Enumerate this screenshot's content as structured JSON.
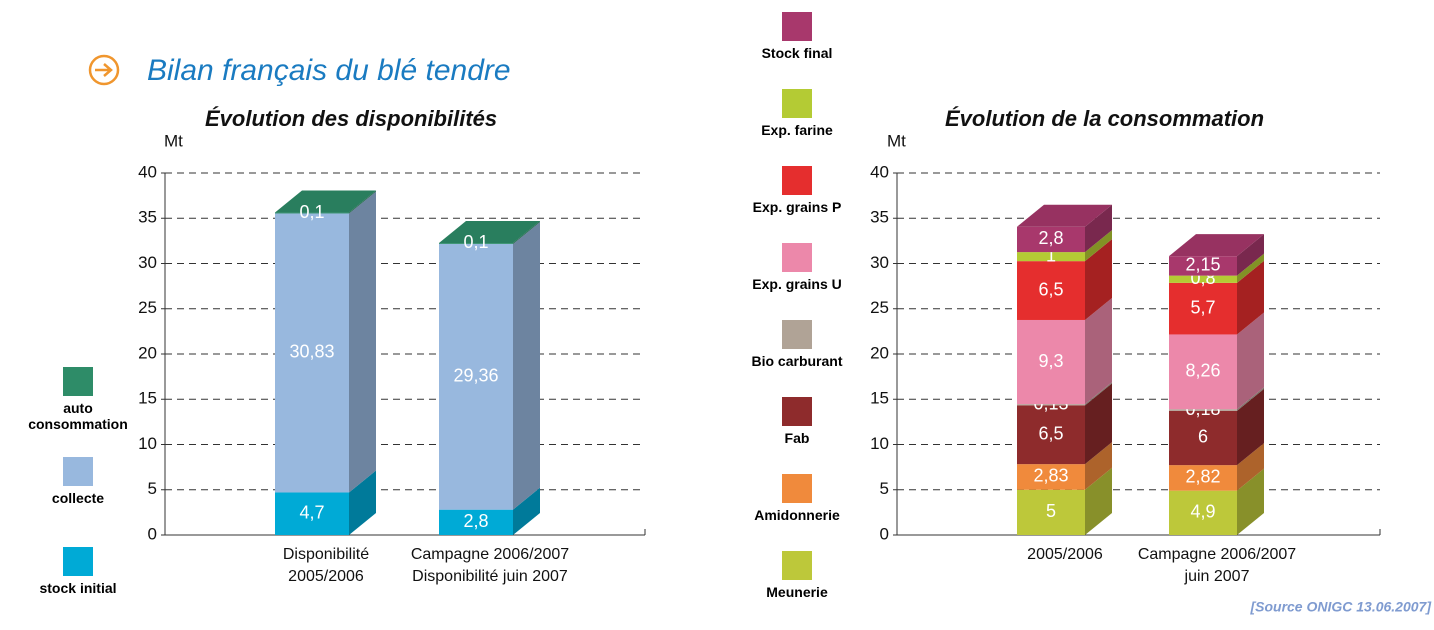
{
  "title": "Bilan français du blé tendre",
  "source": "[Source ONIGC 13.06.2007]",
  "chart_data": [
    {
      "type": "bar3d_stacked",
      "title": "Évolution des disponibilités",
      "y_label": "Mt",
      "categories": [
        "Disponibilité\n2005/2006",
        "Campagne 2006/2007\nDisponibilité juin 2007"
      ],
      "ylim": [
        0,
        40
      ],
      "yticks": [
        0,
        5,
        10,
        15,
        20,
        25,
        30,
        35,
        40
      ],
      "grid": true,
      "series": [
        {
          "name": "stock initial",
          "color": "#00aad6",
          "values": [
            4.7,
            2.8
          ],
          "value_labels": [
            "4,7",
            "2,8"
          ]
        },
        {
          "name": "collecte",
          "color": "#98b8de",
          "values": [
            30.83,
            29.36
          ],
          "value_labels": [
            "30,83",
            "29,36"
          ]
        },
        {
          "name": "auto consommation",
          "color": "#2e8c68",
          "values": [
            0.1,
            0.1
          ],
          "value_labels": [
            "0,1",
            "0,1"
          ]
        }
      ]
    },
    {
      "type": "bar3d_stacked",
      "title": "Évolution de la consommation",
      "y_label": "Mt",
      "categories": [
        "2005/2006",
        "Campagne 2006/2007\njuin 2007"
      ],
      "ylim": [
        0,
        40
      ],
      "yticks": [
        0,
        5,
        10,
        15,
        20,
        25,
        30,
        35,
        40
      ],
      "grid": true,
      "series": [
        {
          "name": "Meunerie",
          "color": "#bdc83a",
          "values": [
            5,
            4.9
          ],
          "value_labels": [
            "5",
            "4,9"
          ]
        },
        {
          "name": "Amidonnerie",
          "color": "#f08a3c",
          "values": [
            2.83,
            2.82
          ],
          "value_labels": [
            "2,83",
            "2,82"
          ]
        },
        {
          "name": "Fab",
          "color": "#8e2b2c",
          "values": [
            6.5,
            6
          ],
          "value_labels": [
            "6,5",
            "6"
          ]
        },
        {
          "name": "Bio carburant",
          "color": "#b0a396",
          "values": [
            0.13,
            0.18
          ],
          "value_labels": [
            "0,13",
            "0,18"
          ]
        },
        {
          "name": "Exp. grains U",
          "color": "#ec88aa",
          "values": [
            9.3,
            8.26
          ],
          "value_labels": [
            "9,3",
            "8,26"
          ]
        },
        {
          "name": "Exp. grains P",
          "color": "#e52e2e",
          "values": [
            6.5,
            5.7
          ],
          "value_labels": [
            "6,5",
            "5,7"
          ]
        },
        {
          "name": "Exp. farine",
          "color": "#b4cb34",
          "values": [
            1,
            0.8
          ],
          "value_labels": [
            "1",
            "0,8"
          ]
        },
        {
          "name": "Stock final",
          "color": "#a8386c",
          "values": [
            2.8,
            2.15
          ],
          "value_labels": [
            "2,8",
            "2,15"
          ]
        }
      ]
    }
  ]
}
